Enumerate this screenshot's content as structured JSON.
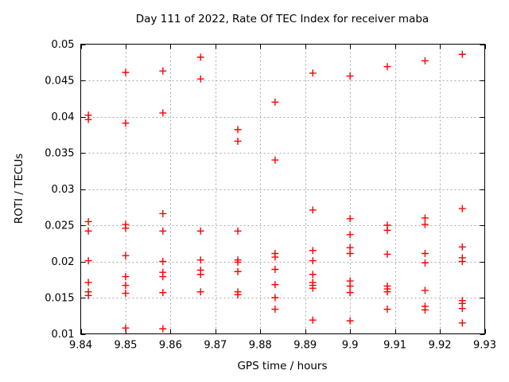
{
  "chart_data": {
    "type": "scatter",
    "title": "Day 111 of 2022, Rate Of TEC Index for receiver maba",
    "xlabel": "GPS time / hours",
    "ylabel": "ROTI / TECUs",
    "xlim": [
      9.84,
      9.93
    ],
    "ylim": [
      0.01,
      0.05
    ],
    "xticks": [
      9.84,
      9.85,
      9.86,
      9.87,
      9.88,
      9.89,
      9.9,
      9.91,
      9.92,
      9.93
    ],
    "xtick_labels": [
      "9.84",
      "9.85",
      "9.86",
      "9.87",
      "9.88",
      "9.89",
      "9.9",
      "9.91",
      "9.92",
      "9.93"
    ],
    "yticks": [
      0.01,
      0.015,
      0.02,
      0.025,
      0.03,
      0.035,
      0.04,
      0.045,
      0.05
    ],
    "ytick_labels": [
      "0.01",
      "0.015",
      "0.02",
      "0.025",
      "0.03",
      "0.035",
      "0.04",
      "0.045",
      "0.05"
    ],
    "grid": true,
    "legend": "none",
    "marker": {
      "shape": "plus",
      "size": 9,
      "color": "#ff0000"
    },
    "style": {
      "background": "#ffffff",
      "axis_color": "#000000",
      "grid_color": "#a8a8a8"
    },
    "points": [
      [
        9.8417,
        0.0402
      ],
      [
        9.8417,
        0.0396
      ],
      [
        9.8417,
        0.0255
      ],
      [
        9.8417,
        0.0242
      ],
      [
        9.8417,
        0.0201
      ],
      [
        9.8417,
        0.0171
      ],
      [
        9.8417,
        0.0158
      ],
      [
        9.8417,
        0.0153
      ],
      [
        9.85,
        0.0461
      ],
      [
        9.85,
        0.0391
      ],
      [
        9.85,
        0.0251
      ],
      [
        9.85,
        0.0246
      ],
      [
        9.85,
        0.0208
      ],
      [
        9.85,
        0.0179
      ],
      [
        9.85,
        0.0167
      ],
      [
        9.85,
        0.0156
      ],
      [
        9.85,
        0.0108
      ],
      [
        9.8583,
        0.0463
      ],
      [
        9.8583,
        0.0405
      ],
      [
        9.8583,
        0.0266
      ],
      [
        9.8583,
        0.0242
      ],
      [
        9.8583,
        0.02
      ],
      [
        9.8583,
        0.0185
      ],
      [
        9.8583,
        0.0179
      ],
      [
        9.8583,
        0.0157
      ],
      [
        9.8583,
        0.0107
      ],
      [
        9.8667,
        0.0482
      ],
      [
        9.8667,
        0.0452
      ],
      [
        9.8667,
        0.0242
      ],
      [
        9.8667,
        0.0202
      ],
      [
        9.8667,
        0.0188
      ],
      [
        9.8667,
        0.0182
      ],
      [
        9.8667,
        0.0158
      ],
      [
        9.875,
        0.0382
      ],
      [
        9.875,
        0.0366
      ],
      [
        9.875,
        0.0242
      ],
      [
        9.875,
        0.0202
      ],
      [
        9.875,
        0.0199
      ],
      [
        9.875,
        0.0186
      ],
      [
        9.875,
        0.0158
      ],
      [
        9.875,
        0.0154
      ],
      [
        9.8833,
        0.042
      ],
      [
        9.8833,
        0.034
      ],
      [
        9.8833,
        0.0211
      ],
      [
        9.8833,
        0.0206
      ],
      [
        9.8833,
        0.0189
      ],
      [
        9.8833,
        0.0168
      ],
      [
        9.8833,
        0.015
      ],
      [
        9.8833,
        0.0134
      ],
      [
        9.8917,
        0.046
      ],
      [
        9.8917,
        0.0271
      ],
      [
        9.8917,
        0.0215
      ],
      [
        9.8917,
        0.0201
      ],
      [
        9.8917,
        0.0182
      ],
      [
        9.8917,
        0.0171
      ],
      [
        9.8917,
        0.0167
      ],
      [
        9.8917,
        0.0163
      ],
      [
        9.8917,
        0.0119
      ],
      [
        9.9,
        0.0456
      ],
      [
        9.9,
        0.0259
      ],
      [
        9.9,
        0.0237
      ],
      [
        9.9,
        0.0219
      ],
      [
        9.9,
        0.0211
      ],
      [
        9.9,
        0.0173
      ],
      [
        9.9,
        0.0166
      ],
      [
        9.9,
        0.0157
      ],
      [
        9.9,
        0.0118
      ],
      [
        9.9083,
        0.0469
      ],
      [
        9.9083,
        0.025
      ],
      [
        9.9083,
        0.0243
      ],
      [
        9.9083,
        0.021
      ],
      [
        9.9083,
        0.0166
      ],
      [
        9.9083,
        0.0162
      ],
      [
        9.9083,
        0.0158
      ],
      [
        9.9083,
        0.0134
      ],
      [
        9.9167,
        0.0477
      ],
      [
        9.9167,
        0.026
      ],
      [
        9.9167,
        0.0251
      ],
      [
        9.9167,
        0.0211
      ],
      [
        9.9167,
        0.0198
      ],
      [
        9.9167,
        0.016
      ],
      [
        9.9167,
        0.0138
      ],
      [
        9.9167,
        0.0133
      ],
      [
        9.925,
        0.0486
      ],
      [
        9.925,
        0.0273
      ],
      [
        9.925,
        0.022
      ],
      [
        9.925,
        0.0205
      ],
      [
        9.925,
        0.02
      ],
      [
        9.925,
        0.0146
      ],
      [
        9.925,
        0.0142
      ],
      [
        9.925,
        0.0135
      ],
      [
        9.925,
        0.0115
      ]
    ]
  }
}
